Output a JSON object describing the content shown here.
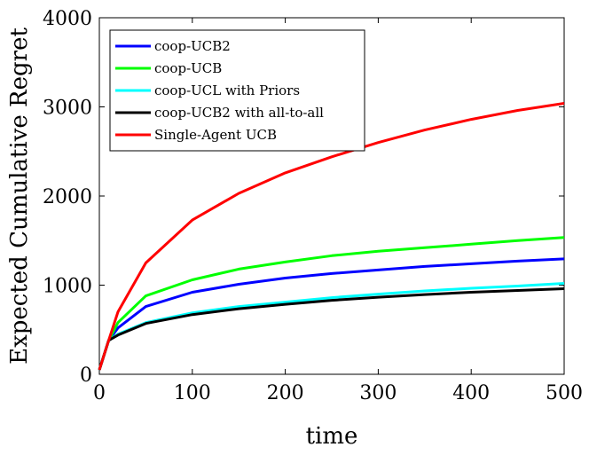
{
  "chart_data": {
    "type": "line",
    "xlabel": "time",
    "ylabel": "Expected Cumulative Regret",
    "xlim": [
      0,
      500
    ],
    "ylim": [
      0,
      4000
    ],
    "xticks": [
      0,
      100,
      200,
      300,
      400,
      500
    ],
    "yticks": [
      0,
      1000,
      2000,
      3000,
      4000
    ],
    "grid": false,
    "legend_position": "top-left",
    "x": [
      0,
      10,
      20,
      50,
      100,
      150,
      200,
      250,
      300,
      350,
      400,
      450,
      500
    ],
    "series": [
      {
        "name": "coop-UCB2",
        "color": "#0000ff",
        "values": [
          50,
          380,
          520,
          760,
          920,
          1010,
          1080,
          1130,
          1170,
          1210,
          1240,
          1270,
          1295
        ]
      },
      {
        "name": "coop-UCB",
        "color": "#00ff00",
        "values": [
          50,
          380,
          580,
          880,
          1060,
          1180,
          1260,
          1330,
          1380,
          1420,
          1460,
          1500,
          1535
        ]
      },
      {
        "name": "coop-UCL with Priors",
        "color": "#00ffff",
        "values": [
          50,
          380,
          450,
          580,
          690,
          760,
          810,
          860,
          900,
          935,
          965,
          990,
          1020
        ]
      },
      {
        "name": "coop-UCB2 with all-to-all",
        "color": "#000000",
        "values": [
          50,
          380,
          440,
          570,
          670,
          735,
          785,
          830,
          865,
          895,
          920,
          940,
          960
        ]
      },
      {
        "name": "Single-Agent UCB",
        "color": "#ff0000",
        "values": [
          50,
          380,
          700,
          1250,
          1730,
          2030,
          2260,
          2440,
          2600,
          2740,
          2860,
          2960,
          3040
        ]
      }
    ]
  }
}
